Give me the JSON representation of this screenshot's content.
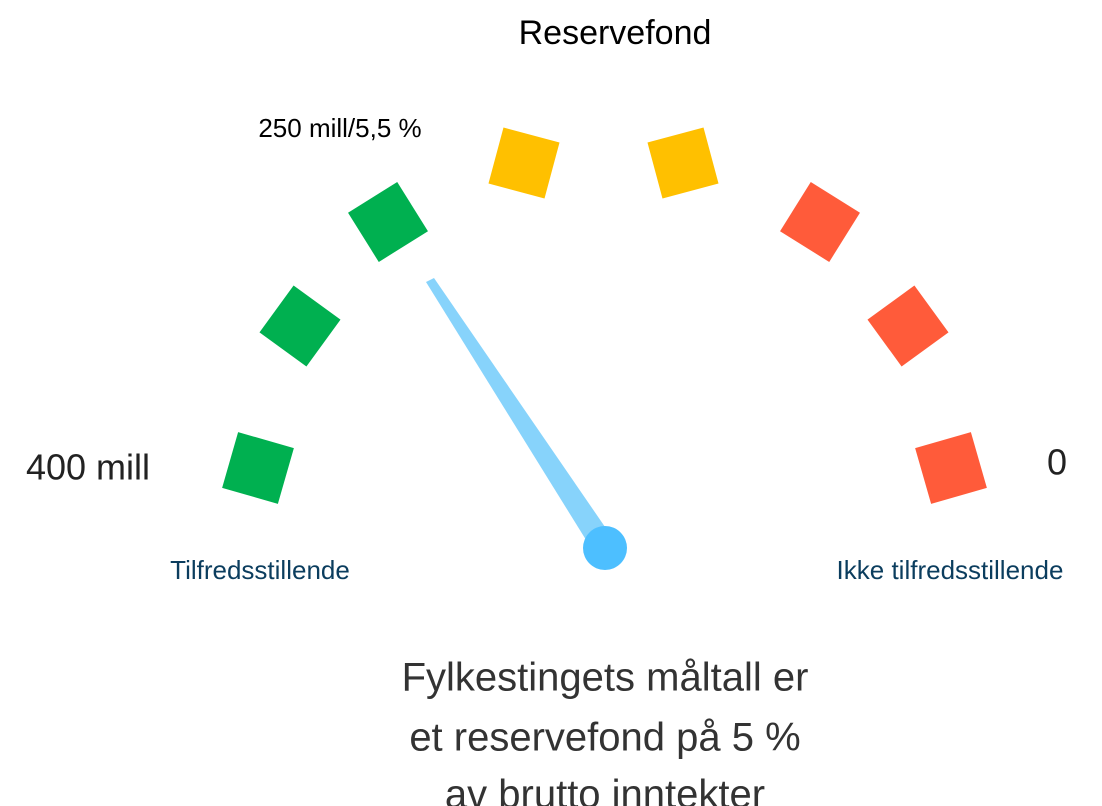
{
  "title": "Reservefond",
  "scale": {
    "max_label": "400 mill",
    "min_label": "0",
    "marker_label": "250 mill/5,5 %",
    "good_label": "Tilfredsstillende",
    "bad_label": "Ikke tilfredsstillende"
  },
  "note": {
    "lines": [
      "Fylkestingets måltall er",
      "et reservefond på 5 %",
      "av brutto inntekter"
    ]
  }
}
